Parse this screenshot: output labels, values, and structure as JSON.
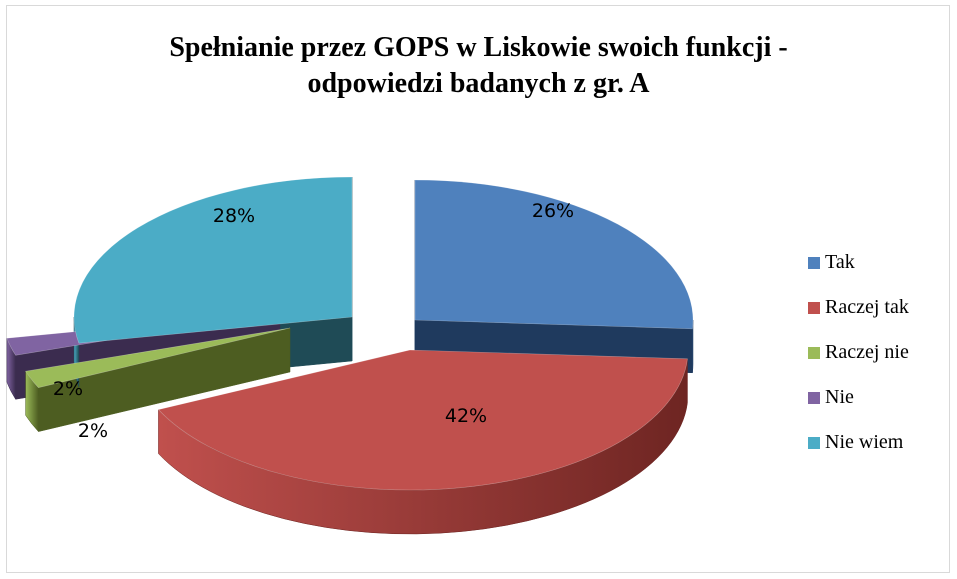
{
  "chart_data": {
    "type": "pie",
    "style": "3d-exploded",
    "title": "Spełnianie przez GOPS w Liskowie swoich funkcji - odpowiedzi badanych z gr. A",
    "title_lines": [
      "Spełnianie przez GOPS w Liskowie swoich funkcji -",
      "odpowiedzi badanych z gr. A"
    ],
    "legend_position": "right",
    "slices": [
      {
        "name": "Tak",
        "value": 26,
        "label": "26%",
        "color": "#4f81bd",
        "side_color": "#1f3a5e"
      },
      {
        "name": "Raczej tak",
        "value": 42,
        "label": "42%",
        "color": "#c0504d",
        "side_color": "#6e2522"
      },
      {
        "name": "Raczej nie",
        "value": 2,
        "label": "2%",
        "color": "#9bbb59",
        "side_color": "#4d5d21"
      },
      {
        "name": "Nie",
        "value": 2,
        "label": "2%",
        "color": "#8064a2",
        "side_color": "#3b2c4f"
      },
      {
        "name": "Nie wiem",
        "value": 28,
        "label": "28%",
        "color": "#4bacc6",
        "side_color": "#1f4b56"
      }
    ]
  }
}
